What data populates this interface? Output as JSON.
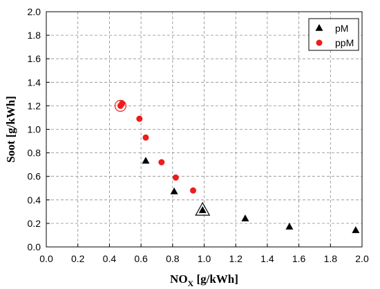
{
  "chart_data": {
    "type": "scatter",
    "xlabel_main": "NO",
    "xlabel_sub": "X",
    "xlabel_unit": " [g/kWh]",
    "ylabel": "Soot [g/kWh]",
    "xlim": [
      0.0,
      2.0
    ],
    "ylim": [
      0.0,
      2.0
    ],
    "x_ticks": [
      "0.0",
      "0.2",
      "0.4",
      "0.6",
      "0.8",
      "1.0",
      "1.2",
      "1.4",
      "1.6",
      "1.8",
      "2.0"
    ],
    "y_ticks": [
      "0.0",
      "0.2",
      "0.4",
      "0.6",
      "0.8",
      "1.0",
      "1.2",
      "1.4",
      "1.6",
      "1.8",
      "2.0"
    ],
    "grid": true,
    "legend_position": "top-right",
    "series": [
      {
        "name": "pM",
        "marker": "triangle",
        "color": "#000000",
        "points": [
          {
            "x": 0.63,
            "y": 0.73
          },
          {
            "x": 0.81,
            "y": 0.47
          },
          {
            "x": 0.99,
            "y": 0.31
          },
          {
            "x": 1.26,
            "y": 0.24
          },
          {
            "x": 1.54,
            "y": 0.17
          },
          {
            "x": 1.96,
            "y": 0.14
          }
        ],
        "highlight_index": 2
      },
      {
        "name": "ppM",
        "marker": "circle",
        "color": "#ee1c1c",
        "points": [
          {
            "x": 0.47,
            "y": 1.2
          },
          {
            "x": 0.48,
            "y": 1.22
          },
          {
            "x": 0.59,
            "y": 1.09
          },
          {
            "x": 0.63,
            "y": 0.93
          },
          {
            "x": 0.73,
            "y": 0.72
          },
          {
            "x": 0.82,
            "y": 0.59
          },
          {
            "x": 0.93,
            "y": 0.48
          }
        ],
        "highlight_index": 0
      }
    ]
  }
}
